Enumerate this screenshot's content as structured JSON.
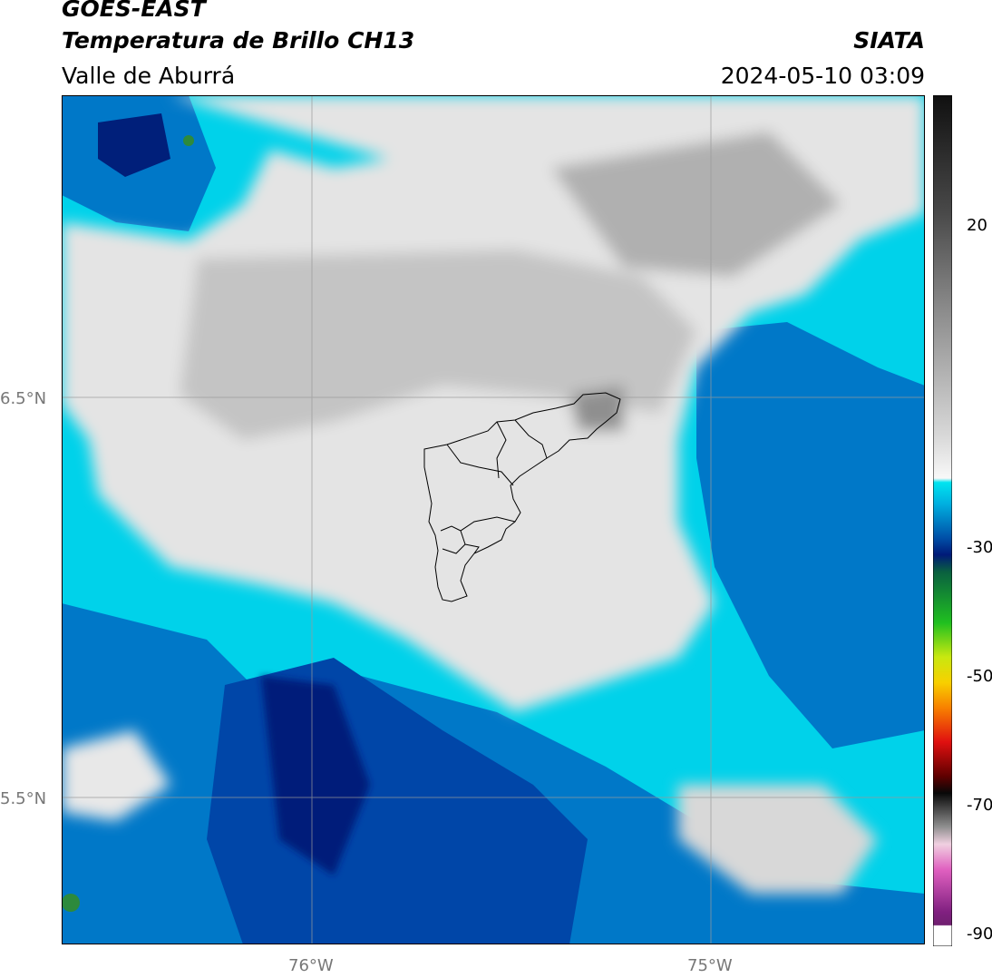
{
  "header": {
    "satellite": "GOES-EAST",
    "product": "Temperatura de Brillo CH13",
    "region": "Valle de Aburrá",
    "agency": "SIATA",
    "datetime": "2024-05-10 03:09"
  },
  "map": {
    "lat_labels": [
      "6.5°N",
      "5.5°N"
    ],
    "lon_labels": [
      "76°W",
      "75°W"
    ],
    "colors": {
      "deep_cold": "#001f7a",
      "dark_blue": "#0046a8",
      "mid_blue": "#0078c8",
      "cyan": "#00d2ea",
      "light_gray": "#e8e8e8",
      "mid_gray": "#bcbcbc",
      "dark_gray": "#8f8f8f",
      "green": "#2d8a3c"
    }
  },
  "colorbar": {
    "labels": [
      "20",
      "-30",
      "-50",
      "-70",
      "-90"
    ]
  }
}
